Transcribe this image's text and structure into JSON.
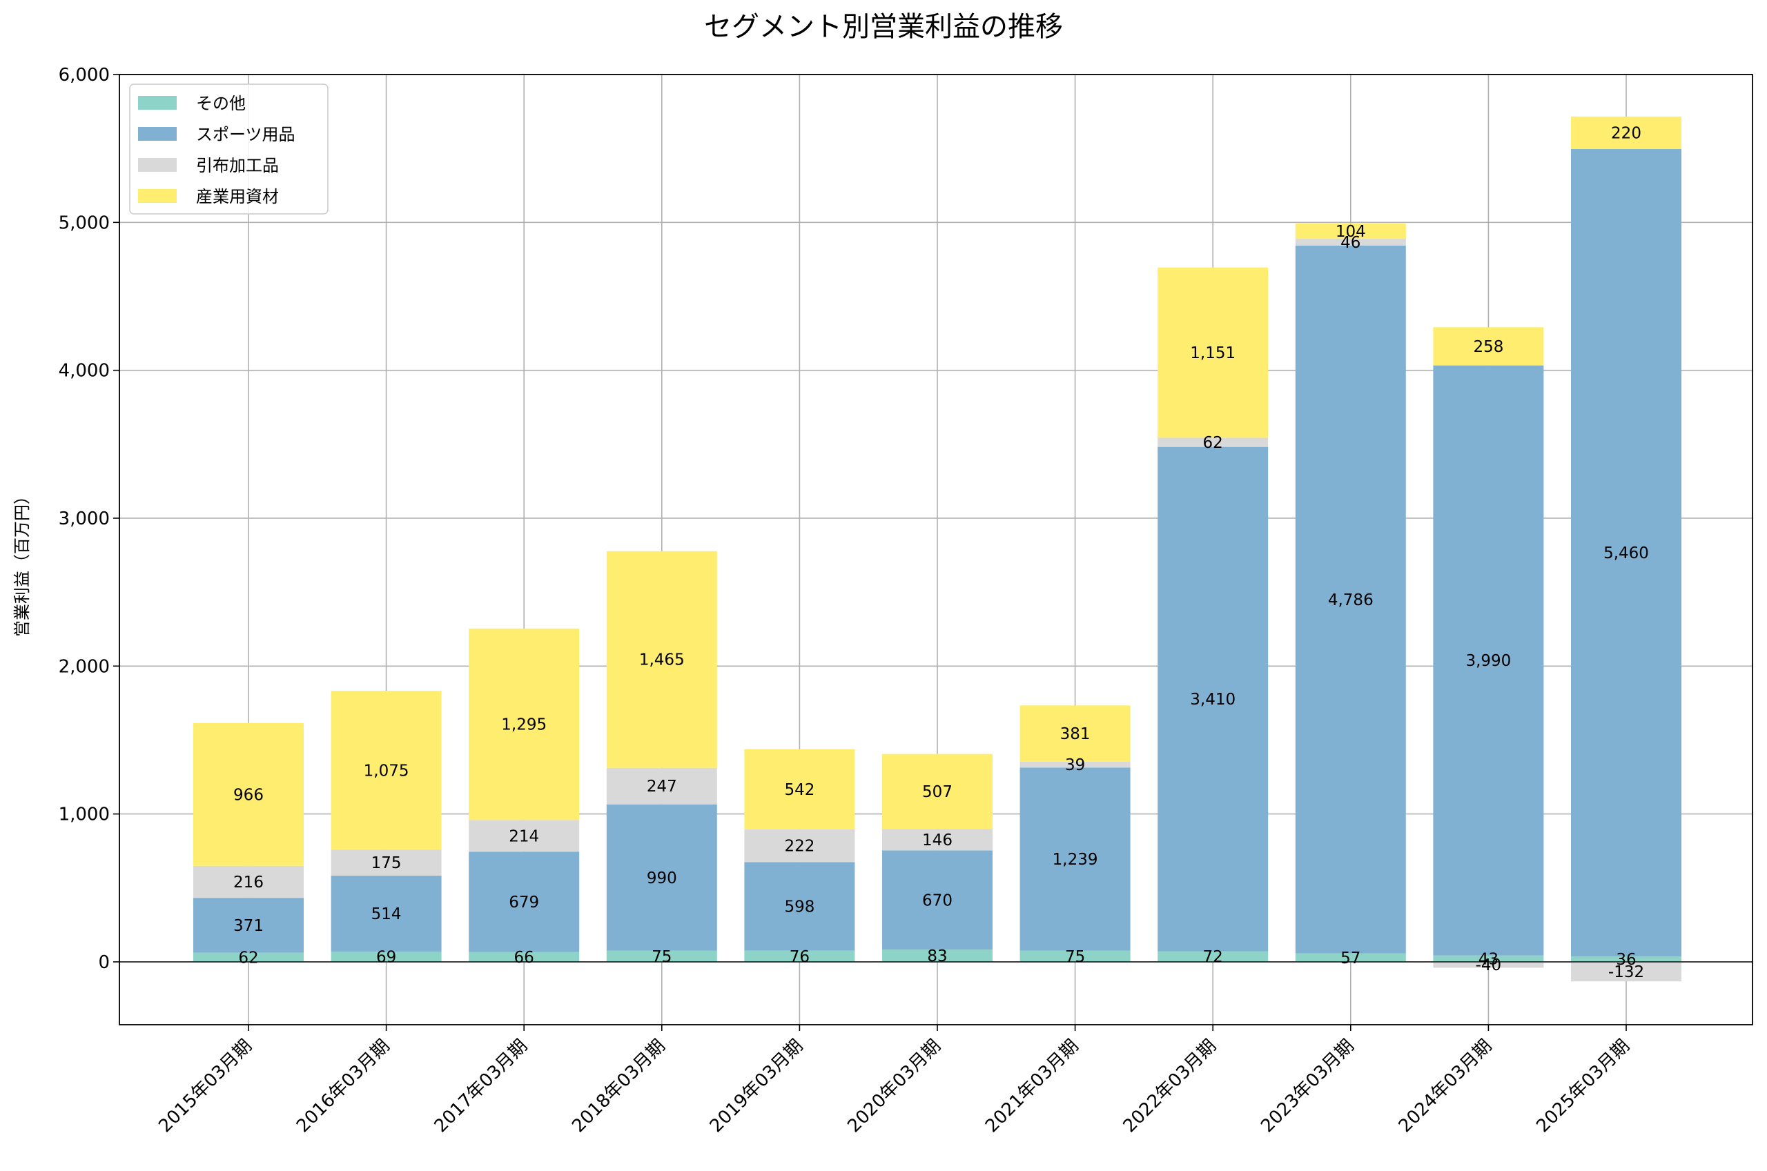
{
  "chart_data": {
    "type": "bar",
    "stacked": true,
    "title": "セグメント別営業利益の推移",
    "xlabel": "",
    "ylabel": "営業利益（百万円）",
    "ylim": [
      -425,
      6000
    ],
    "yticks": [
      0,
      1000,
      2000,
      3000,
      4000,
      5000,
      6000
    ],
    "ytick_labels": [
      "0",
      "1,000",
      "2,000",
      "3,000",
      "4,000",
      "5,000",
      "6,000"
    ],
    "grid": true,
    "legend_position": "top-left",
    "categories": [
      "2015年03月期",
      "2016年03月期",
      "2017年03月期",
      "2018年03月期",
      "2019年03月期",
      "2020年03月期",
      "2021年03月期",
      "2022年03月期",
      "2023年03月期",
      "2024年03月期",
      "2025年03月期"
    ],
    "series": [
      {
        "name": "その他",
        "color": "#8dd3c7",
        "values": [
          62,
          69,
          66,
          75,
          76,
          83,
          75,
          72,
          57,
          43,
          36
        ],
        "labels": [
          "62",
          "69",
          "66",
          "75",
          "76",
          "83",
          "75",
          "72",
          "57",
          "43",
          "36"
        ]
      },
      {
        "name": "スポーツ用品",
        "color": "#80b1d3",
        "values": [
          371,
          514,
          679,
          990,
          598,
          670,
          1239,
          3410,
          4786,
          3990,
          5460
        ],
        "labels": [
          "371",
          "514",
          "679",
          "990",
          "598",
          "670",
          "1,239",
          "3,410",
          "4,786",
          "3,990",
          "5,460"
        ]
      },
      {
        "name": "引布加工品",
        "color": "#d9d9d9",
        "values": [
          216,
          175,
          214,
          247,
          222,
          146,
          39,
          62,
          46,
          -40,
          -132
        ],
        "labels": [
          "216",
          "175",
          "214",
          "247",
          "222",
          "146",
          "39",
          "62",
          "46",
          "-40",
          "-132"
        ]
      },
      {
        "name": "産業用資材",
        "color": "#ffed6f",
        "values": [
          966,
          1075,
          1295,
          1465,
          542,
          507,
          381,
          1151,
          104,
          258,
          220
        ],
        "labels": [
          "966",
          "1,075",
          "1,295",
          "1,465",
          "542",
          "507",
          "381",
          "1,151",
          "104",
          "258",
          "220"
        ]
      }
    ]
  }
}
